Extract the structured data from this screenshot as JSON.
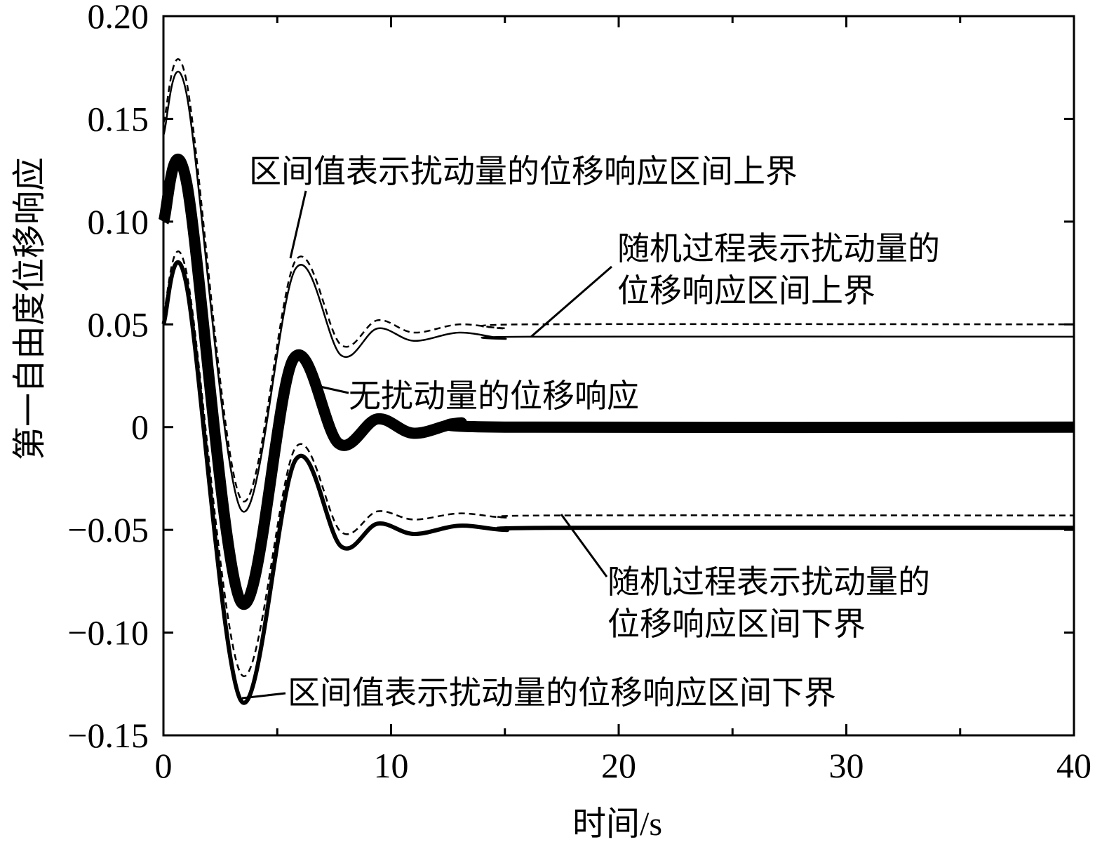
{
  "chart_data": {
    "type": "line",
    "title": "",
    "xlabel": "时间/s",
    "ylabel": "第一自由度位移响应",
    "xlim": [
      0,
      40
    ],
    "ylim": [
      -0.15,
      0.2
    ],
    "xticks": [
      0,
      10,
      20,
      30,
      40
    ],
    "xtick_labels": [
      "0",
      "10",
      "20",
      "30",
      "40"
    ],
    "yticks": [
      -0.15,
      -0.1,
      -0.05,
      0,
      0.05,
      0.1,
      0.15,
      0.2
    ],
    "ytick_labels": [
      "−0.15",
      "−0.10",
      "−0.05",
      "0",
      "0.05",
      "0.10",
      "0.15",
      "0.20"
    ],
    "grid": false,
    "series": [
      {
        "key": "interval_upper",
        "style": "solid-thin",
        "x": [
          0,
          1,
          3.4,
          5.8,
          7.8,
          9.4,
          11,
          13,
          15,
          16,
          40
        ],
        "y": [
          0.142,
          0.163,
          -0.04,
          0.077,
          0.035,
          0.048,
          0.042,
          0.046,
          0.043,
          0.044,
          0.044
        ]
      },
      {
        "key": "random_upper",
        "style": "dashed",
        "x": [
          0,
          1,
          3.4,
          5.8,
          7.8,
          9.4,
          11,
          13,
          15,
          16,
          40
        ],
        "y": [
          0.148,
          0.169,
          -0.035,
          0.081,
          0.04,
          0.052,
          0.046,
          0.05,
          0.048,
          0.05,
          0.05
        ]
      },
      {
        "key": "nominal",
        "style": "solid-thick",
        "x": [
          0,
          1,
          3.4,
          5.7,
          7.7,
          9.4,
          11,
          13,
          15,
          40
        ],
        "y": [
          0.1,
          0.12,
          -0.085,
          0.033,
          -0.008,
          0.004,
          -0.003,
          0.002,
          0,
          0
        ]
      },
      {
        "key": "random_lower",
        "style": "dashed",
        "x": [
          0,
          1,
          3.4,
          5.8,
          7.8,
          9.4,
          11,
          13,
          15,
          17,
          40
        ],
        "y": [
          0.055,
          0.076,
          -0.12,
          -0.01,
          -0.051,
          -0.041,
          -0.045,
          -0.042,
          -0.044,
          -0.043,
          -0.043
        ]
      },
      {
        "key": "interval_lower",
        "style": "solid-medium",
        "x": [
          0,
          1,
          3.4,
          5.8,
          7.8,
          9.4,
          11,
          13,
          15,
          17,
          40
        ],
        "y": [
          0.05,
          0.07,
          -0.133,
          -0.016,
          -0.058,
          -0.047,
          -0.052,
          -0.048,
          -0.05,
          -0.049,
          -0.049
        ]
      }
    ],
    "annotations": {
      "interval_upper": "区间值表示扰动量的位移响应区间上界",
      "random_upper_1": "随机过程表示扰动量的",
      "random_upper_2": "位移响应区间上界",
      "nominal": "无扰动量的位移响应",
      "random_lower_1": "随机过程表示扰动量的",
      "random_lower_2": "位移响应区间下界",
      "interval_lower": "区间值表示扰动量的位移响应区间下界"
    }
  }
}
